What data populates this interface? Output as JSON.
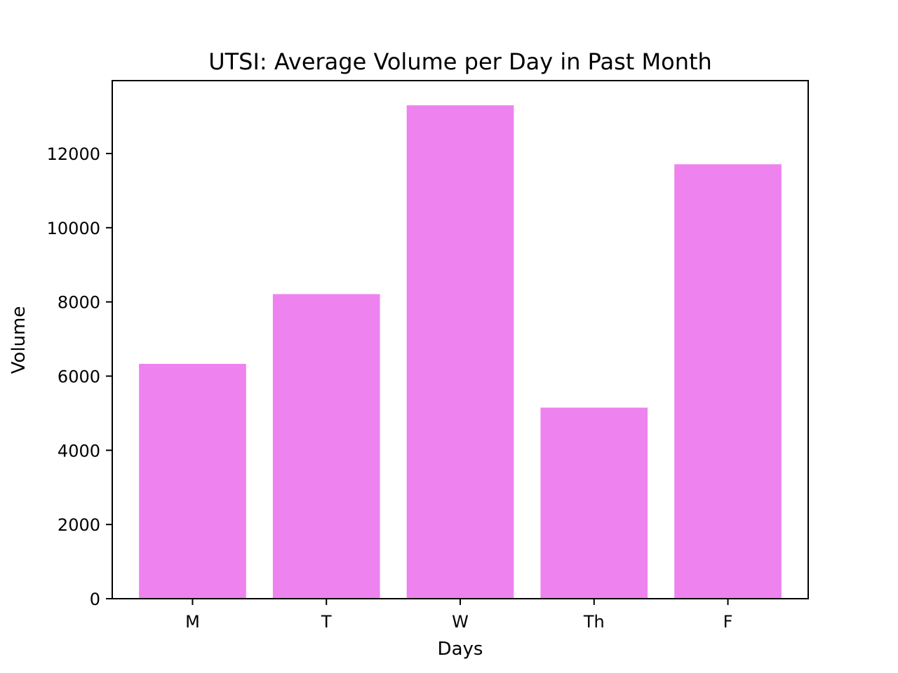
{
  "chart_data": {
    "type": "bar",
    "title": "UTSI: Average Volume per Day in Past Month",
    "xlabel": "Days",
    "ylabel": "Volume",
    "categories": [
      "M",
      "T",
      "W",
      "Th",
      "F"
    ],
    "values": [
      6330,
      8210,
      13300,
      5150,
      11710
    ],
    "ylim": [
      0,
      13965
    ],
    "yticks": [
      0,
      2000,
      4000,
      6000,
      8000,
      10000,
      12000
    ],
    "grid": false,
    "bar_color": "#ee82ee"
  }
}
